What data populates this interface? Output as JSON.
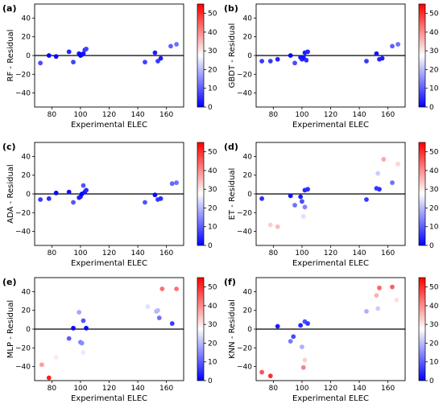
{
  "chart_data": [
    {
      "type": "scatter",
      "panel_label": "(a)",
      "ylabel": "RF - Residual",
      "xlabel": "Experimental ELEC",
      "xlim": [
        68,
        172
      ],
      "ylim": [
        -55,
        55
      ],
      "xticks": [
        "80",
        "100",
        "120",
        "140",
        "160"
      ],
      "yticks": [
        "40",
        "20",
        "0",
        "−20",
        "−40"
      ],
      "colorbar": {
        "range": [
          0,
          55
        ],
        "ticks": [
          "50",
          "40",
          "30",
          "20",
          "10",
          "0"
        ],
        "colormap": "bwr"
      },
      "zero_line": true,
      "points": [
        {
          "x": 72,
          "y": -8,
          "c": 8
        },
        {
          "x": 78,
          "y": 0,
          "c": 0
        },
        {
          "x": 83,
          "y": -1,
          "c": 1
        },
        {
          "x": 92,
          "y": 4,
          "c": 4
        },
        {
          "x": 95,
          "y": -7,
          "c": 7
        },
        {
          "x": 99,
          "y": 2,
          "c": 2
        },
        {
          "x": 100,
          "y": 0,
          "c": 0
        },
        {
          "x": 101,
          "y": 1,
          "c": 1
        },
        {
          "x": 102,
          "y": 2,
          "c": 2
        },
        {
          "x": 103,
          "y": 6,
          "c": 6
        },
        {
          "x": 104,
          "y": 7,
          "c": 7
        },
        {
          "x": 145,
          "y": -7,
          "c": 7
        },
        {
          "x": 152,
          "y": 3,
          "c": 3
        },
        {
          "x": 154,
          "y": -6,
          "c": 6
        },
        {
          "x": 156,
          "y": -3,
          "c": 3
        },
        {
          "x": 163,
          "y": 10,
          "c": 10
        },
        {
          "x": 167,
          "y": 12,
          "c": 12
        }
      ]
    },
    {
      "type": "scatter",
      "panel_label": "(b)",
      "ylabel": "GBDT - Residual",
      "xlabel": "Experimental ELEC",
      "xlim": [
        68,
        172
      ],
      "ylim": [
        -55,
        55
      ],
      "xticks": [
        "80",
        "100",
        "120",
        "140",
        "160"
      ],
      "yticks": [
        "40",
        "20",
        "0",
        "−20",
        "−40"
      ],
      "colorbar": {
        "range": [
          0,
          55
        ],
        "ticks": [
          "50",
          "40",
          "30",
          "20",
          "10",
          "0"
        ],
        "colormap": "bwr"
      },
      "zero_line": true,
      "points": [
        {
          "x": 72,
          "y": -6,
          "c": 6
        },
        {
          "x": 78,
          "y": -6,
          "c": 6
        },
        {
          "x": 83,
          "y": -4,
          "c": 4
        },
        {
          "x": 92,
          "y": 0,
          "c": 0
        },
        {
          "x": 95,
          "y": -8,
          "c": 8
        },
        {
          "x": 99,
          "y": -2,
          "c": 2
        },
        {
          "x": 100,
          "y": -4,
          "c": 4
        },
        {
          "x": 101,
          "y": -2,
          "c": 2
        },
        {
          "x": 102,
          "y": 3,
          "c": 3
        },
        {
          "x": 103,
          "y": -5,
          "c": 5
        },
        {
          "x": 104,
          "y": 4,
          "c": 4
        },
        {
          "x": 145,
          "y": -6,
          "c": 6
        },
        {
          "x": 152,
          "y": 2,
          "c": 2
        },
        {
          "x": 154,
          "y": -4,
          "c": 4
        },
        {
          "x": 156,
          "y": -3,
          "c": 3
        },
        {
          "x": 163,
          "y": 10,
          "c": 10
        },
        {
          "x": 167,
          "y": 12,
          "c": 12
        }
      ]
    },
    {
      "type": "scatter",
      "panel_label": "(c)",
      "ylabel": "ADA - Residual",
      "xlabel": "Experimental ELEC",
      "xlim": [
        68,
        172
      ],
      "ylim": [
        -55,
        55
      ],
      "xticks": [
        "80",
        "100",
        "120",
        "140",
        "160"
      ],
      "yticks": [
        "40",
        "20",
        "0",
        "−20",
        "−40"
      ],
      "colorbar": {
        "range": [
          0,
          55
        ],
        "ticks": [
          "50",
          "40",
          "30",
          "20",
          "10",
          "0"
        ],
        "colormap": "bwr"
      },
      "zero_line": true,
      "points": [
        {
          "x": 72,
          "y": -6,
          "c": 6
        },
        {
          "x": 78,
          "y": -5,
          "c": 5
        },
        {
          "x": 83,
          "y": 1,
          "c": 1
        },
        {
          "x": 92,
          "y": 2,
          "c": 2
        },
        {
          "x": 95,
          "y": -9,
          "c": 9
        },
        {
          "x": 99,
          "y": -4,
          "c": 4
        },
        {
          "x": 100,
          "y": -3,
          "c": 3
        },
        {
          "x": 101,
          "y": 0,
          "c": 0
        },
        {
          "x": 102,
          "y": 9,
          "c": 9
        },
        {
          "x": 103,
          "y": 2,
          "c": 2
        },
        {
          "x": 104,
          "y": 4,
          "c": 4
        },
        {
          "x": 145,
          "y": -9,
          "c": 9
        },
        {
          "x": 152,
          "y": -1,
          "c": 1
        },
        {
          "x": 154,
          "y": -6,
          "c": 6
        },
        {
          "x": 156,
          "y": -5,
          "c": 5
        },
        {
          "x": 164,
          "y": 11,
          "c": 11
        },
        {
          "x": 167,
          "y": 12,
          "c": 12
        }
      ]
    },
    {
      "type": "scatter",
      "panel_label": "(d)",
      "ylabel": "ET - Residual",
      "xlabel": "Experimental ELEC",
      "xlim": [
        68,
        172
      ],
      "ylim": [
        -55,
        55
      ],
      "xticks": [
        "80",
        "100",
        "120",
        "140",
        "160"
      ],
      "yticks": [
        "40",
        "20",
        "0",
        "−20",
        "−40"
      ],
      "colorbar": {
        "range": [
          0,
          55
        ],
        "ticks": [
          "50",
          "40",
          "30",
          "20",
          "10",
          "0"
        ],
        "colormap": "bwr"
      },
      "zero_line": true,
      "points": [
        {
          "x": 72,
          "y": -5,
          "c": 5
        },
        {
          "x": 78,
          "y": -33,
          "c": 33
        },
        {
          "x": 83,
          "y": -35,
          "c": 35
        },
        {
          "x": 92,
          "y": -2,
          "c": 2
        },
        {
          "x": 95,
          "y": -12,
          "c": 12
        },
        {
          "x": 99,
          "y": -3,
          "c": 3
        },
        {
          "x": 100,
          "y": -8,
          "c": 8
        },
        {
          "x": 101,
          "y": -24,
          "c": 24
        },
        {
          "x": 102,
          "y": -14,
          "c": 14
        },
        {
          "x": 102,
          "y": 4,
          "c": 4
        },
        {
          "x": 104,
          "y": 5,
          "c": 5
        },
        {
          "x": 145,
          "y": -6,
          "c": 6
        },
        {
          "x": 152,
          "y": 6,
          "c": 6
        },
        {
          "x": 153,
          "y": 22,
          "c": 22
        },
        {
          "x": 154,
          "y": 5,
          "c": 5
        },
        {
          "x": 157,
          "y": 37,
          "c": 37
        },
        {
          "x": 163,
          "y": 12,
          "c": 12
        },
        {
          "x": 167,
          "y": 32,
          "c": 32
        }
      ]
    },
    {
      "type": "scatter",
      "panel_label": "(e)",
      "ylabel": "MLP - Residual",
      "xlabel": "Experimental ELEC",
      "xlim": [
        68,
        172
      ],
      "ylim": [
        -55,
        55
      ],
      "xticks": [
        "80",
        "100",
        "120",
        "140",
        "160"
      ],
      "yticks": [
        "40",
        "20",
        "0",
        "−20",
        "−40"
      ],
      "colorbar": {
        "range": [
          0,
          55
        ],
        "ticks": [
          "50",
          "40",
          "30",
          "20",
          "10",
          "0"
        ],
        "colormap": "bwr"
      },
      "zero_line": true,
      "points": [
        {
          "x": 73,
          "y": -38,
          "c": 38
        },
        {
          "x": 78,
          "y": -52,
          "c": 52
        },
        {
          "x": 83,
          "y": -30,
          "c": 30
        },
        {
          "x": 92,
          "y": -10,
          "c": 10
        },
        {
          "x": 95,
          "y": 1,
          "c": 1
        },
        {
          "x": 99,
          "y": 18,
          "c": 18
        },
        {
          "x": 100,
          "y": -14,
          "c": 14
        },
        {
          "x": 101,
          "y": -15,
          "c": 15
        },
        {
          "x": 102,
          "y": 9,
          "c": 9
        },
        {
          "x": 102,
          "y": -25,
          "c": 25
        },
        {
          "x": 104,
          "y": 1,
          "c": 1
        },
        {
          "x": 147,
          "y": 24,
          "c": 24
        },
        {
          "x": 153,
          "y": 19,
          "c": 19
        },
        {
          "x": 154,
          "y": 20,
          "c": 20
        },
        {
          "x": 155,
          "y": 12,
          "c": 12
        },
        {
          "x": 157,
          "y": 43,
          "c": 43
        },
        {
          "x": 164,
          "y": 6,
          "c": 6
        },
        {
          "x": 167,
          "y": 43,
          "c": 43
        }
      ]
    },
    {
      "type": "scatter",
      "panel_label": "(f)",
      "ylabel": "KNN - Residual",
      "xlabel": "Experimental ELEC",
      "xlim": [
        68,
        172
      ],
      "ylim": [
        -55,
        55
      ],
      "xticks": [
        "80",
        "100",
        "120",
        "140",
        "160"
      ],
      "yticks": [
        "40",
        "20",
        "0",
        "−20",
        "−40"
      ],
      "colorbar": {
        "range": [
          0,
          55
        ],
        "ticks": [
          "50",
          "40",
          "30",
          "20",
          "10",
          "0"
        ],
        "colormap": "bwr"
      },
      "zero_line": true,
      "points": [
        {
          "x": 72,
          "y": -46,
          "c": 46
        },
        {
          "x": 78,
          "y": -50,
          "c": 50
        },
        {
          "x": 83,
          "y": 3,
          "c": 3
        },
        {
          "x": 92,
          "y": -13,
          "c": 13
        },
        {
          "x": 94,
          "y": -8,
          "c": 8
        },
        {
          "x": 99,
          "y": 4,
          "c": 4
        },
        {
          "x": 100,
          "y": -19,
          "c": 19
        },
        {
          "x": 101,
          "y": -41,
          "c": 41
        },
        {
          "x": 102,
          "y": 8,
          "c": 8
        },
        {
          "x": 102,
          "y": -33,
          "c": 33
        },
        {
          "x": 104,
          "y": 6,
          "c": 6
        },
        {
          "x": 145,
          "y": 19,
          "c": 19
        },
        {
          "x": 152,
          "y": 36,
          "c": 36
        },
        {
          "x": 153,
          "y": 22,
          "c": 22
        },
        {
          "x": 154,
          "y": 44,
          "c": 44
        },
        {
          "x": 163,
          "y": 45,
          "c": 45
        },
        {
          "x": 166,
          "y": 31,
          "c": 31
        }
      ]
    }
  ]
}
